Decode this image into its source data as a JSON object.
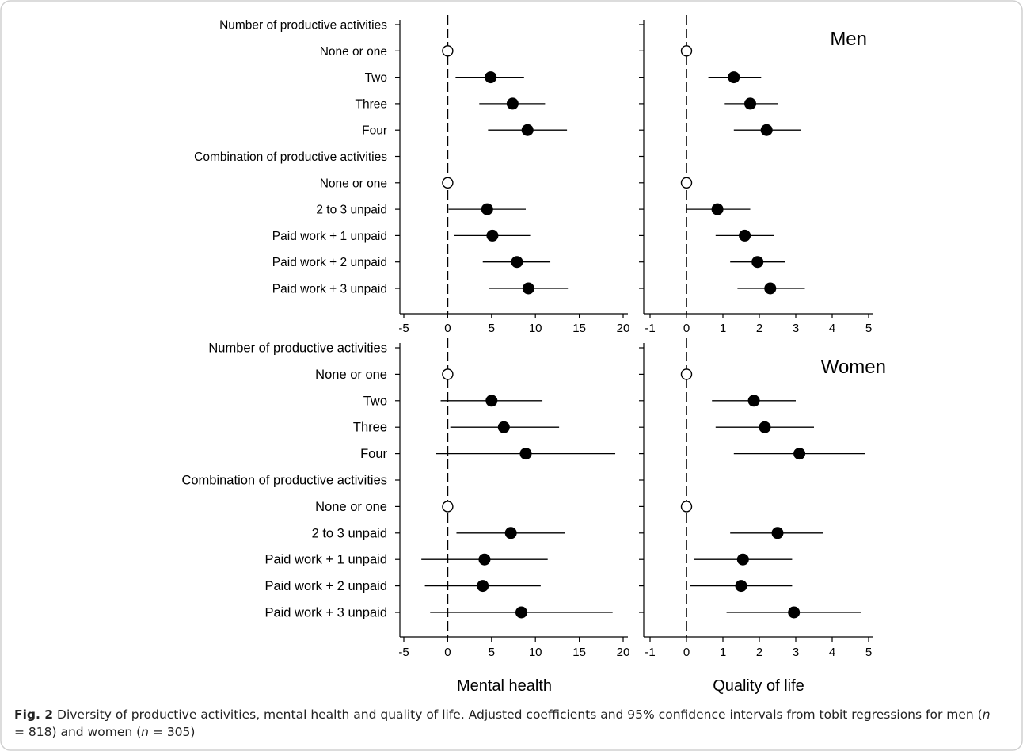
{
  "figure_label": "Fig. 2",
  "caption": {
    "p1": " Diversity of productive activities, mental health and quality of life. Adjusted coefficients and 95% confidence intervals from tobit regressions for men (",
    "n1": "n",
    "p2": " = 818) and women (",
    "n2": "n",
    "p3": " = 305)"
  },
  "colors": {
    "frame": "#d0d0d0",
    "ink": "#000000",
    "filled": "#000000",
    "open": "#ffffff"
  },
  "chart_data": {
    "type": "scatter",
    "rows": [
      {
        "label": "Number of productive activities",
        "header": true
      },
      {
        "label": "None or one"
      },
      {
        "label": "Two"
      },
      {
        "label": "Three"
      },
      {
        "label": "Four"
      },
      {
        "label": "Combination of productive activities",
        "header": true
      },
      {
        "label": "None or one"
      },
      {
        "label": "2 to 3 unpaid"
      },
      {
        "label": "Paid work + 1 unpaid"
      },
      {
        "label": "Paid work + 2 unpaid"
      },
      {
        "label": "Paid work + 3 unpaid"
      }
    ],
    "columns": [
      {
        "xlabel": "Mental health",
        "xlim": [
          -5,
          20
        ],
        "ticks": [
          -5,
          0,
          5,
          10,
          15,
          20
        ]
      },
      {
        "xlabel": "Quality of life",
        "xlim": [
          -1,
          5
        ],
        "ticks": [
          -1,
          0,
          1,
          2,
          3,
          4,
          5
        ]
      }
    ],
    "panels": [
      {
        "group": "Men",
        "measure": "Mental health",
        "points": [
          {
            "row": 1,
            "est": 0,
            "ref": true
          },
          {
            "row": 2,
            "est": 4.9,
            "lo": 0.9,
            "hi": 8.7
          },
          {
            "row": 3,
            "est": 7.4,
            "lo": 3.6,
            "hi": 11.1
          },
          {
            "row": 4,
            "est": 9.1,
            "lo": 4.6,
            "hi": 13.6
          },
          {
            "row": 6,
            "est": 0,
            "ref": true
          },
          {
            "row": 7,
            "est": 4.5,
            "lo": 0.1,
            "hi": 8.9
          },
          {
            "row": 8,
            "est": 5.1,
            "lo": 0.7,
            "hi": 9.4
          },
          {
            "row": 9,
            "est": 7.9,
            "lo": 4.0,
            "hi": 11.7
          },
          {
            "row": 10,
            "est": 9.2,
            "lo": 4.7,
            "hi": 13.7
          }
        ]
      },
      {
        "group": "Men",
        "measure": "Quality of life",
        "points": [
          {
            "row": 1,
            "est": 0,
            "ref": true
          },
          {
            "row": 2,
            "est": 1.3,
            "lo": 0.6,
            "hi": 2.05
          },
          {
            "row": 3,
            "est": 1.75,
            "lo": 1.05,
            "hi": 2.5
          },
          {
            "row": 4,
            "est": 2.2,
            "lo": 1.3,
            "hi": 3.15
          },
          {
            "row": 6,
            "est": 0,
            "ref": true
          },
          {
            "row": 7,
            "est": 0.85,
            "lo": 0.0,
            "hi": 1.75
          },
          {
            "row": 8,
            "est": 1.6,
            "lo": 0.8,
            "hi": 2.4
          },
          {
            "row": 9,
            "est": 1.95,
            "lo": 1.2,
            "hi": 2.7
          },
          {
            "row": 10,
            "est": 2.3,
            "lo": 1.4,
            "hi": 3.25
          }
        ]
      },
      {
        "group": "Women",
        "measure": "Mental health",
        "points": [
          {
            "row": 1,
            "est": 0,
            "ref": true
          },
          {
            "row": 2,
            "est": 5.0,
            "lo": -0.8,
            "hi": 10.8
          },
          {
            "row": 3,
            "est": 6.4,
            "lo": 0.3,
            "hi": 12.7
          },
          {
            "row": 4,
            "est": 8.9,
            "lo": -1.3,
            "hi": 19.1
          },
          {
            "row": 6,
            "est": 0,
            "ref": true
          },
          {
            "row": 7,
            "est": 7.2,
            "lo": 1.0,
            "hi": 13.4
          },
          {
            "row": 8,
            "est": 4.2,
            "lo": -3.0,
            "hi": 11.4
          },
          {
            "row": 9,
            "est": 4.0,
            "lo": -2.6,
            "hi": 10.6
          },
          {
            "row": 10,
            "est": 8.4,
            "lo": -2.0,
            "hi": 18.8
          }
        ]
      },
      {
        "group": "Women",
        "measure": "Quality of life",
        "points": [
          {
            "row": 1,
            "est": 0,
            "ref": true
          },
          {
            "row": 2,
            "est": 1.85,
            "lo": 0.7,
            "hi": 3.0
          },
          {
            "row": 3,
            "est": 2.15,
            "lo": 0.8,
            "hi": 3.5
          },
          {
            "row": 4,
            "est": 3.1,
            "lo": 1.3,
            "hi": 4.9
          },
          {
            "row": 6,
            "est": 0,
            "ref": true
          },
          {
            "row": 7,
            "est": 2.5,
            "lo": 1.2,
            "hi": 3.75
          },
          {
            "row": 8,
            "est": 1.55,
            "lo": 0.2,
            "hi": 2.9
          },
          {
            "row": 9,
            "est": 1.5,
            "lo": 0.1,
            "hi": 2.9
          },
          {
            "row": 10,
            "est": 2.95,
            "lo": 1.1,
            "hi": 4.8
          }
        ]
      }
    ]
  }
}
